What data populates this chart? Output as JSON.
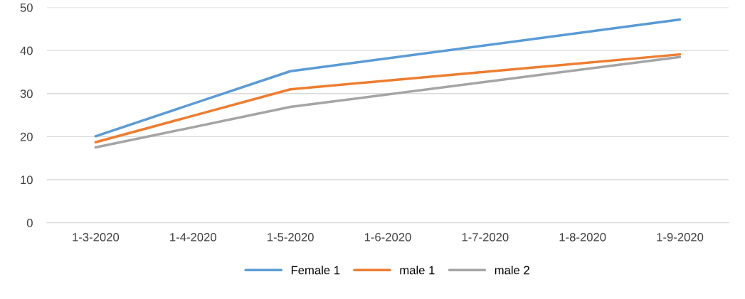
{
  "chart_data": {
    "type": "line",
    "categories": [
      "1-3-2020",
      "1-4-2020",
      "1-5-2020",
      "1-6-2020",
      "1-7-2020",
      "1-8-2020",
      "1-9-2020"
    ],
    "series": [
      {
        "name": "Female 1",
        "color": "#5b9bd5",
        "values": [
          20.1,
          null,
          35.2,
          null,
          null,
          null,
          47.2
        ]
      },
      {
        "name": "male 1",
        "color": "#ed7d31",
        "values": [
          18.7,
          null,
          31.0,
          null,
          null,
          null,
          39.1
        ]
      },
      {
        "name": "male 2",
        "color": "#a5a5a5",
        "values": [
          17.5,
          null,
          26.9,
          null,
          null,
          null,
          38.5
        ]
      }
    ],
    "ylim": [
      0,
      50
    ],
    "yticks": [
      0,
      10,
      20,
      30,
      40,
      50
    ],
    "grid": "y",
    "legend": "bottom",
    "marker": "none",
    "line_style": "solid"
  }
}
